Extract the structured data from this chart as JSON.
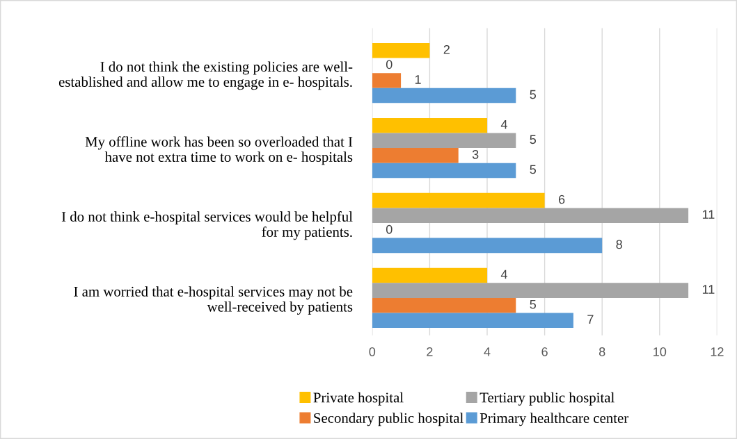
{
  "chart_data": {
    "type": "bar",
    "orientation": "horizontal",
    "categories": [
      "I do not think the existing policies are well-\nestablished and allow me to engage in e- hospitals.",
      "My offline work has been so overloaded that I\nhave not extra time to work on e- hospitals",
      "I do not think e-hospital services would be helpful\nfor my patients.",
      "I am worried that e-hospital services may not be\nwell-received by patients"
    ],
    "series": [
      {
        "name": "Private hospital",
        "color": "#ffc000",
        "values": [
          2,
          4,
          6,
          4
        ]
      },
      {
        "name": "Tertiary public hospital",
        "color": "#a5a5a5",
        "values": [
          0,
          5,
          11,
          11
        ]
      },
      {
        "name": "Secondary public hospital",
        "color": "#ed7d31",
        "values": [
          1,
          3,
          0,
          5
        ]
      },
      {
        "name": "Primary healthcare center",
        "color": "#5b9bd5",
        "values": [
          5,
          5,
          8,
          7
        ]
      }
    ],
    "xlim": [
      0,
      12
    ],
    "xticks": [
      0,
      2,
      4,
      6,
      8,
      10,
      12
    ],
    "grid": "x",
    "legend": "bottom",
    "data_labels": true
  }
}
